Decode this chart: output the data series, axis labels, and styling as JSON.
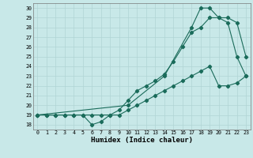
{
  "xlabel": "Humidex (Indice chaleur)",
  "background_color": "#c8e8e8",
  "grid_color": "#b0d4d4",
  "line_color": "#1a6b5a",
  "xlim": [
    -0.5,
    23.5
  ],
  "ylim": [
    17.5,
    30.5
  ],
  "xticks": [
    0,
    1,
    2,
    3,
    4,
    5,
    6,
    7,
    8,
    9,
    10,
    11,
    12,
    13,
    14,
    15,
    16,
    17,
    18,
    19,
    20,
    21,
    22,
    23
  ],
  "yticks": [
    18,
    19,
    20,
    21,
    22,
    23,
    24,
    25,
    26,
    27,
    28,
    29,
    30
  ],
  "series1_x": [
    0,
    1,
    2,
    3,
    4,
    5,
    6,
    7,
    8,
    9,
    10,
    11,
    12,
    13,
    14,
    15,
    16,
    17,
    18,
    19,
    20,
    21,
    22,
    23
  ],
  "series1_y": [
    19,
    19,
    19,
    19,
    19,
    19,
    18,
    18.3,
    19,
    19.5,
    20.5,
    21.5,
    22,
    22.5,
    23.2,
    24.5,
    26,
    27.5,
    28,
    29,
    29,
    28.5,
    25,
    23
  ],
  "series2_x": [
    0,
    1,
    2,
    3,
    4,
    5,
    6,
    7,
    8,
    9,
    10,
    11,
    12,
    13,
    14,
    15,
    16,
    17,
    18,
    19,
    20,
    21,
    22,
    23
  ],
  "series2_y": [
    19,
    19,
    19,
    19,
    19,
    19,
    19,
    19,
    19,
    19,
    19.5,
    20,
    20.5,
    21,
    21.5,
    22,
    22.5,
    23,
    23.5,
    24,
    22,
    22,
    22.3,
    23
  ],
  "series3_x": [
    0,
    10,
    14,
    17,
    18,
    19,
    20,
    21,
    22,
    23
  ],
  "series3_y": [
    19,
    20,
    23,
    28,
    30,
    30,
    29,
    29,
    28.5,
    25
  ]
}
